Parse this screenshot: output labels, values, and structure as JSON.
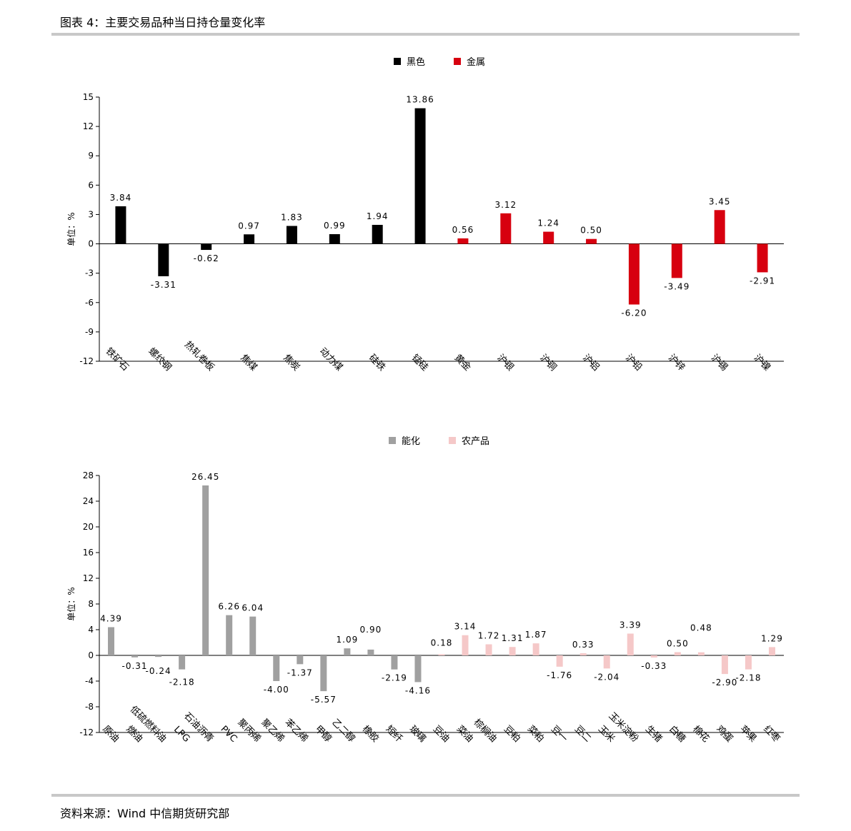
{
  "header": {
    "title": "图表 4：主要交易品种当日持仓量变化率"
  },
  "footer": {
    "source": "资料来源：Wind 中信期货研究部"
  },
  "chart_data": [
    {
      "type": "bar",
      "ylabel": "单位：%",
      "ylim": [
        -12,
        15
      ],
      "yticks": [
        -12,
        -9,
        -6,
        -3,
        0,
        3,
        6,
        9,
        12,
        15
      ],
      "legend_position": "top-center",
      "categories": [
        "铁矿石",
        "螺纹钢",
        "热轧卷板",
        "焦煤",
        "焦炭",
        "动力煤",
        "硅铁",
        "锰硅",
        "黄金",
        "沪银",
        "沪铜",
        "沪铝",
        "沪铅",
        "沪锌",
        "沪锡",
        "沪镍"
      ],
      "values": [
        3.84,
        -3.31,
        -0.62,
        0.97,
        1.83,
        0.99,
        1.94,
        13.86,
        0.56,
        3.12,
        1.24,
        0.5,
        -6.2,
        -3.49,
        3.45,
        -2.91
      ],
      "labels": [
        "3.84",
        "-3.31",
        "-0.62",
        "0.97",
        "1.83",
        "0.99",
        "1.94",
        "13.86",
        "0.56",
        "3.12",
        "1.24",
        "0.50",
        "-6.20",
        "-3.49",
        "3.45",
        "-2.91"
      ],
      "group": [
        0,
        0,
        0,
        0,
        0,
        0,
        0,
        0,
        1,
        1,
        1,
        1,
        1,
        1,
        1,
        1
      ],
      "series": [
        {
          "name": "黑色",
          "color": "#000000"
        },
        {
          "name": "金属",
          "color": "#d7000f"
        }
      ]
    },
    {
      "type": "bar",
      "ylabel": "单位：%",
      "ylim": [
        -12,
        28
      ],
      "yticks": [
        -12,
        -8,
        -4,
        0,
        4,
        8,
        12,
        16,
        20,
        24,
        28
      ],
      "legend_position": "top-center",
      "categories": [
        "原油",
        "燃油",
        "低硫燃料油",
        "LPG",
        "石油沥青",
        "PVC",
        "聚丙烯",
        "聚乙烯",
        "苯乙烯",
        "甲醇",
        "乙二醇",
        "橡胶",
        "短纤",
        "玻璃",
        "豆油",
        "菜油",
        "棕榈油",
        "豆粕",
        "菜粕",
        "豆一",
        "豆二",
        "玉米",
        "玉米淀粉",
        "生猪",
        "白糖",
        "棉花",
        "鸡蛋",
        "苹果",
        "红枣"
      ],
      "values": [
        4.39,
        -0.31,
        -0.24,
        -2.18,
        26.45,
        6.26,
        6.04,
        -4.0,
        -1.37,
        -5.57,
        1.09,
        0.9,
        -2.19,
        -4.16,
        0.18,
        3.14,
        1.72,
        1.31,
        1.87,
        -1.76,
        0.33,
        -2.04,
        3.39,
        -0.33,
        0.5,
        0.48,
        -2.9,
        -2.18,
        1.29
      ],
      "labels": [
        "4.39",
        "-0.31",
        "-0.24",
        "-2.18",
        "26.45",
        "6.26",
        "6.04",
        "-4.00",
        "-1.37",
        "-5.57",
        "1.09",
        "0.90",
        "-2.19",
        "-4.16",
        "0.18",
        "3.14",
        "1.72",
        "1.31",
        "1.87",
        "-1.76",
        "0.33",
        "-2.04",
        "3.39",
        "-0.33",
        "0.50",
        "0.48",
        "-2.90",
        "-2.18",
        "1.29"
      ],
      "group": [
        0,
        0,
        0,
        0,
        0,
        0,
        0,
        0,
        0,
        0,
        0,
        0,
        0,
        0,
        1,
        1,
        1,
        1,
        1,
        1,
        1,
        1,
        1,
        1,
        1,
        1,
        1,
        1,
        1
      ],
      "series": [
        {
          "name": "能化",
          "color": "#a0a0a0"
        },
        {
          "name": "农产品",
          "color": "#f5c8c8"
        }
      ]
    }
  ]
}
